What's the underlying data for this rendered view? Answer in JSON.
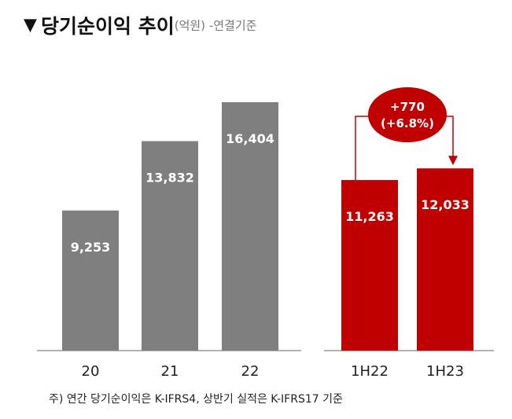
{
  "title": {
    "marker": "▼",
    "main": "당기순이익 추이",
    "unit": "(억원)",
    "basis": " -연결기준"
  },
  "footnote": "주) 연간 당기순이익은 K-IFRS4, 상반기 실적은 K-IFRS17 기준",
  "colors": {
    "annual": "#7f7f7f",
    "half": "#c00000",
    "axis": "#999999"
  },
  "chart_data": [
    {
      "type": "bar",
      "categories": [
        "20",
        "21",
        "22"
      ],
      "values": [
        9253,
        13832,
        16404
      ],
      "value_labels": [
        "9,253",
        "13,832",
        "16,404"
      ]
    },
    {
      "type": "bar",
      "categories": [
        "1H22",
        "1H23"
      ],
      "values": [
        11263,
        12033
      ],
      "value_labels": [
        "11,263",
        "12,033"
      ],
      "annotation": {
        "line1": "+770",
        "line2": "(+6.8%)"
      }
    }
  ]
}
